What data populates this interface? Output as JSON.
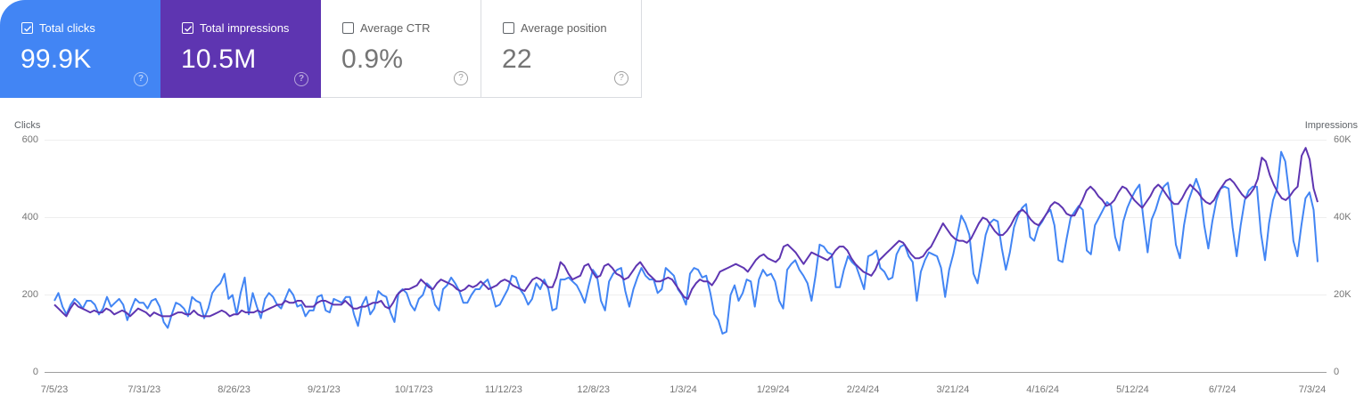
{
  "cards": [
    {
      "label": "Total clicks",
      "value": "99.9K",
      "checked": true,
      "color": "#4285f4"
    },
    {
      "label": "Total impressions",
      "value": "10.5M",
      "checked": true,
      "color": "#5e35b1"
    },
    {
      "label": "Average CTR",
      "value": "0.9%",
      "checked": false
    },
    {
      "label": "Average position",
      "value": "22",
      "checked": false
    }
  ],
  "help_glyph": "?",
  "chart_data": {
    "type": "line",
    "title": "",
    "left_axis": {
      "label": "Clicks",
      "ticks": [
        "600",
        "400",
        "200",
        "0"
      ],
      "range": [
        0,
        600
      ]
    },
    "right_axis": {
      "label": "Impressions",
      "ticks": [
        "60K",
        "40K",
        "20K",
        "0"
      ],
      "range": [
        0,
        60000
      ]
    },
    "x_ticks": [
      "7/5/23",
      "7/31/23",
      "8/26/23",
      "9/21/23",
      "10/17/23",
      "11/12/23",
      "12/8/23",
      "1/3/24",
      "1/29/24",
      "2/24/24",
      "3/21/24",
      "4/16/24",
      "5/12/24",
      "6/7/24",
      "7/3/24"
    ],
    "x_range": [
      "7/5/23",
      "7/3/24"
    ],
    "grid": true,
    "legend": "cards",
    "sample_interval_days": 2,
    "series": [
      {
        "name": "Clicks",
        "axis": "left",
        "color": "#4285f4",
        "values": [
          185,
          205,
          170,
          150,
          175,
          190,
          180,
          165,
          185,
          185,
          175,
          150,
          165,
          195,
          170,
          180,
          190,
          175,
          135,
          165,
          190,
          180,
          180,
          165,
          185,
          190,
          170,
          130,
          115,
          150,
          180,
          175,
          165,
          145,
          195,
          185,
          180,
          140,
          165,
          205,
          220,
          230,
          255,
          190,
          200,
          150,
          205,
          245,
          150,
          205,
          170,
          140,
          190,
          205,
          195,
          175,
          165,
          190,
          215,
          200,
          170,
          175,
          145,
          160,
          160,
          195,
          200,
          160,
          155,
          190,
          185,
          180,
          195,
          195,
          150,
          120,
          175,
          195,
          150,
          165,
          210,
          200,
          195,
          155,
          130,
          205,
          215,
          205,
          175,
          160,
          190,
          200,
          230,
          220,
          175,
          160,
          215,
          225,
          245,
          230,
          210,
          180,
          180,
          200,
          215,
          215,
          230,
          240,
          210,
          170,
          175,
          195,
          215,
          250,
          245,
          215,
          200,
          175,
          190,
          230,
          215,
          240,
          215,
          160,
          165,
          240,
          240,
          245,
          235,
          225,
          205,
          180,
          225,
          265,
          250,
          185,
          160,
          235,
          255,
          265,
          270,
          210,
          170,
          215,
          245,
          270,
          250,
          240,
          240,
          205,
          215,
          270,
          260,
          250,
          215,
          200,
          175,
          255,
          270,
          265,
          245,
          250,
          205,
          150,
          135,
          100,
          105,
          200,
          225,
          185,
          205,
          240,
          235,
          170,
          240,
          265,
          250,
          255,
          235,
          185,
          165,
          265,
          280,
          290,
          265,
          250,
          230,
          185,
          250,
          330,
          325,
          310,
          305,
          220,
          220,
          265,
          300,
          285,
          275,
          245,
          215,
          300,
          305,
          315,
          270,
          260,
          240,
          245,
          305,
          325,
          330,
          300,
          285,
          185,
          260,
          290,
          310,
          305,
          300,
          270,
          195,
          265,
          305,
          355,
          405,
          385,
          355,
          255,
          230,
          290,
          355,
          385,
          395,
          390,
          320,
          265,
          310,
          375,
          405,
          425,
          435,
          350,
          340,
          375,
          390,
          410,
          420,
          380,
          290,
          285,
          345,
          400,
          415,
          430,
          420,
          315,
          305,
          380,
          400,
          420,
          440,
          430,
          350,
          315,
          390,
          425,
          450,
          470,
          485,
          395,
          310,
          395,
          420,
          455,
          480,
          490,
          430,
          330,
          295,
          380,
          440,
          470,
          500,
          470,
          380,
          320,
          390,
          445,
          475,
          480,
          475,
          375,
          300,
          380,
          445,
          470,
          480,
          480,
          360,
          290,
          385,
          445,
          475,
          570,
          545,
          460,
          340,
          300,
          380,
          450,
          465,
          420,
          285
        ]
      },
      {
        "name": "Impressions",
        "axis": "right",
        "color": "#5e35b1",
        "values": [
          17500,
          16500,
          15500,
          14500,
          16500,
          18000,
          17000,
          16500,
          16000,
          15500,
          16000,
          15500,
          15500,
          16500,
          16000,
          15000,
          15500,
          16000,
          15500,
          14500,
          15500,
          16500,
          16000,
          15500,
          14500,
          15500,
          15000,
          14500,
          14500,
          14500,
          15000,
          15500,
          15500,
          15000,
          15000,
          16000,
          15000,
          14500,
          14500,
          14500,
          15000,
          15500,
          16000,
          15500,
          14500,
          15000,
          15000,
          16000,
          15500,
          15500,
          15500,
          16000,
          15500,
          16000,
          16500,
          17000,
          17500,
          17500,
          18500,
          18000,
          18000,
          18500,
          18500,
          17000,
          17000,
          17000,
          18000,
          18500,
          18500,
          18000,
          17500,
          17500,
          17500,
          18500,
          17500,
          16500,
          16500,
          17000,
          17000,
          17500,
          18000,
          18000,
          18500,
          17000,
          16500,
          18000,
          20000,
          21000,
          21500,
          21500,
          22000,
          22500,
          24000,
          23000,
          22000,
          21500,
          23000,
          24000,
          23500,
          23000,
          22500,
          21500,
          21000,
          21500,
          22500,
          22000,
          22500,
          23500,
          22500,
          21500,
          22000,
          22500,
          23500,
          24000,
          23500,
          22500,
          22000,
          21500,
          21000,
          22500,
          24000,
          24500,
          24000,
          23000,
          22000,
          22000,
          24500,
          28500,
          27500,
          25500,
          24000,
          24500,
          25000,
          27500,
          28000,
          26000,
          24500,
          25000,
          27500,
          28000,
          27000,
          25500,
          25000,
          24000,
          24500,
          26000,
          27500,
          28500,
          27000,
          25500,
          24500,
          23500,
          23500,
          24000,
          24500,
          24000,
          22500,
          21000,
          19500,
          19000,
          21500,
          23000,
          24000,
          23500,
          23500,
          22500,
          24000,
          26000,
          26500,
          27000,
          27500,
          28000,
          27500,
          27000,
          26000,
          27500,
          29000,
          30000,
          30500,
          29500,
          29000,
          28500,
          29500,
          32500,
          33000,
          32000,
          31000,
          29500,
          28000,
          29500,
          31000,
          30500,
          30000,
          29500,
          29000,
          30000,
          31500,
          32500,
          32500,
          31500,
          29500,
          28000,
          27000,
          26000,
          25500,
          25000,
          26500,
          29000,
          30000,
          31000,
          32000,
          33000,
          34000,
          33500,
          32000,
          30500,
          29500,
          29500,
          30000,
          31500,
          32500,
          34500,
          36500,
          38500,
          37000,
          35500,
          34500,
          34000,
          34000,
          33500,
          34500,
          36500,
          38500,
          40000,
          39500,
          38000,
          36500,
          35500,
          35500,
          36500,
          38000,
          40000,
          41500,
          42000,
          41000,
          39500,
          38500,
          38000,
          39500,
          41000,
          43000,
          44000,
          43500,
          42500,
          41000,
          40500,
          40500,
          42500,
          44500,
          47000,
          48000,
          47000,
          45500,
          44500,
          43000,
          43500,
          44500,
          46500,
          48000,
          47500,
          46000,
          44500,
          43500,
          42500,
          44000,
          45500,
          47500,
          48500,
          47500,
          46000,
          44500,
          43500,
          43500,
          45000,
          47000,
          48500,
          47500,
          46500,
          45000,
          44000,
          43500,
          44500,
          46500,
          48000,
          49500,
          50000,
          49000,
          47500,
          46000,
          45000,
          46000,
          47500,
          50000,
          55500,
          54500,
          51000,
          48500,
          46500,
          45000,
          44500,
          45500,
          47000,
          48000,
          56000,
          58000,
          55000,
          47500,
          44000
        ]
      }
    ]
  }
}
